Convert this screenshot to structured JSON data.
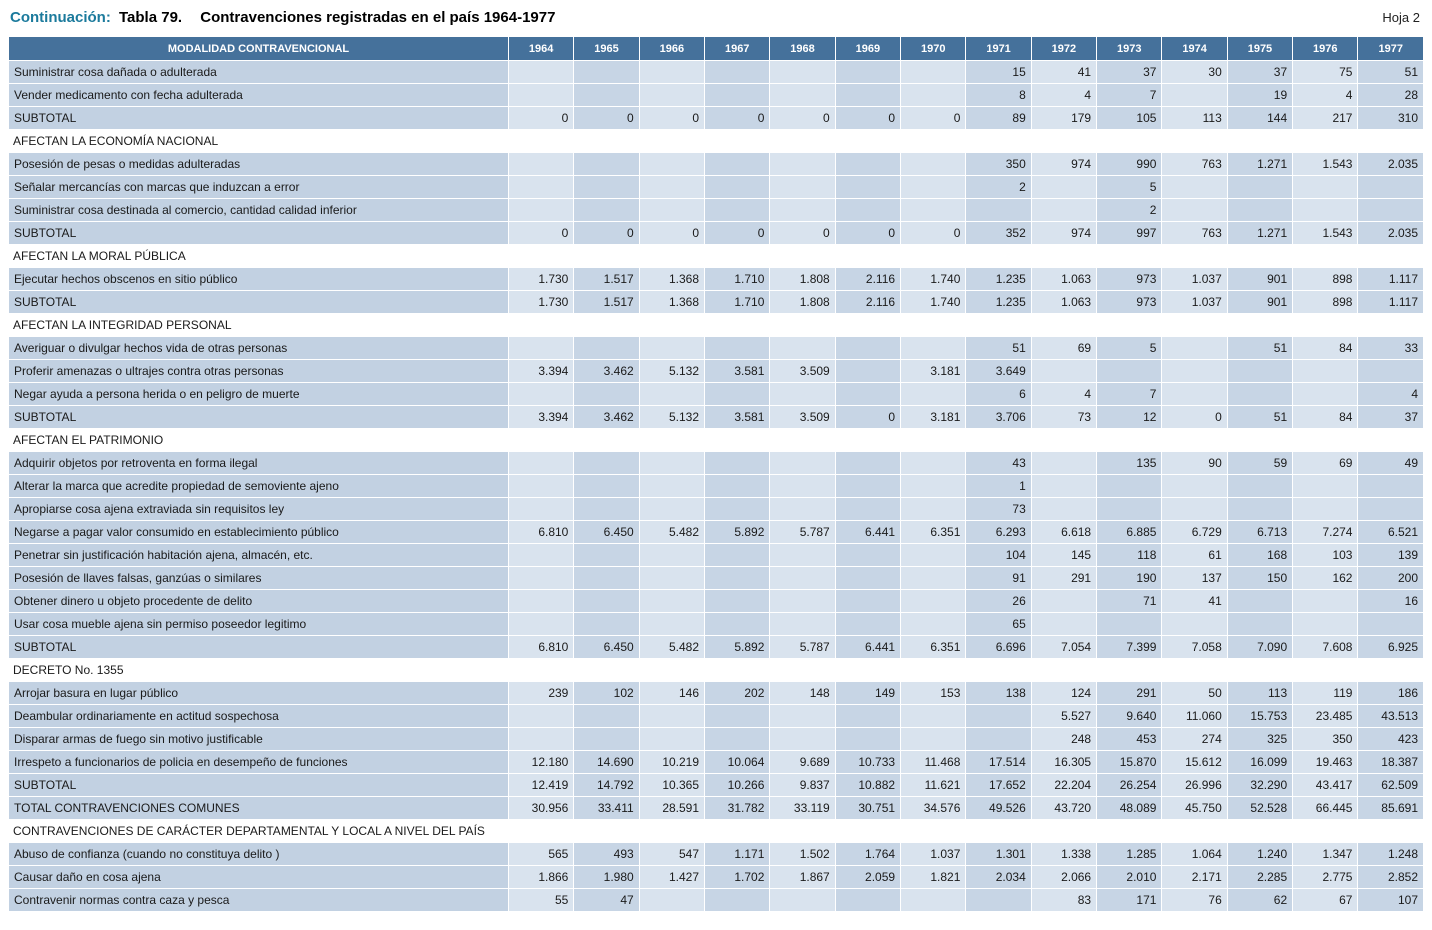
{
  "header": {
    "continuation": "Continuación:",
    "table_label": "Tabla 79.",
    "title": "Contravenciones registradas en el país 1964-1977",
    "page": "Hoja 2"
  },
  "table": {
    "label_header": "MODALIDAD CONTRAVENCIONAL",
    "years": [
      "1964",
      "1965",
      "1966",
      "1967",
      "1968",
      "1969",
      "1970",
      "1971",
      "1972",
      "1973",
      "1974",
      "1975",
      "1976",
      "1977"
    ],
    "rows": [
      {
        "type": "data",
        "label": "Suministrar cosa dañada o adulterada",
        "values": [
          "",
          "",
          "",
          "",
          "",
          "",
          "",
          "15",
          "41",
          "37",
          "30",
          "37",
          "75",
          "51"
        ]
      },
      {
        "type": "data",
        "label": "Vender medicamento con fecha adulterada",
        "values": [
          "",
          "",
          "",
          "",
          "",
          "",
          "",
          "8",
          "4",
          "7",
          "",
          "19",
          "4",
          "28"
        ]
      },
      {
        "type": "subtotal",
        "label": "SUBTOTAL",
        "values": [
          "0",
          "0",
          "0",
          "0",
          "0",
          "0",
          "0",
          "89",
          "179",
          "105",
          "113",
          "144",
          "217",
          "310"
        ]
      },
      {
        "type": "section",
        "label": "AFECTAN LA  ECONOMÍA NACIONAL"
      },
      {
        "type": "data",
        "label": "Posesión de pesas o medidas adulteradas",
        "values": [
          "",
          "",
          "",
          "",
          "",
          "",
          "",
          "350",
          "974",
          "990",
          "763",
          "1.271",
          "1.543",
          "2.035"
        ]
      },
      {
        "type": "data",
        "label": "Señalar mercancías con marcas que induzcan a error",
        "values": [
          "",
          "",
          "",
          "",
          "",
          "",
          "",
          "2",
          "",
          "5",
          "",
          "",
          "",
          ""
        ]
      },
      {
        "type": "data",
        "label": "Suministrar cosa destinada al comercio, cantidad calidad inferior",
        "values": [
          "",
          "",
          "",
          "",
          "",
          "",
          "",
          "",
          "",
          "2",
          "",
          "",
          "",
          ""
        ]
      },
      {
        "type": "subtotal",
        "label": "SUBTOTAL",
        "values": [
          "0",
          "0",
          "0",
          "0",
          "0",
          "0",
          "0",
          "352",
          "974",
          "997",
          "763",
          "1.271",
          "1.543",
          "2.035"
        ]
      },
      {
        "type": "section",
        "label": "AFECTAN LA MORAL PÚBLICA"
      },
      {
        "type": "data",
        "label": "Ejecutar hechos obscenos en sitio público",
        "values": [
          "1.730",
          "1.517",
          "1.368",
          "1.710",
          "1.808",
          "2.116",
          "1.740",
          "1.235",
          "1.063",
          "973",
          "1.037",
          "901",
          "898",
          "1.117"
        ]
      },
      {
        "type": "subtotal",
        "label": "SUBTOTAL",
        "values": [
          "1.730",
          "1.517",
          "1.368",
          "1.710",
          "1.808",
          "2.116",
          "1.740",
          "1.235",
          "1.063",
          "973",
          "1.037",
          "901",
          "898",
          "1.117"
        ]
      },
      {
        "type": "section",
        "label": "AFECTAN LA INTEGRIDAD PERSONAL"
      },
      {
        "type": "data",
        "label": "Averiguar o divulgar hechos vida de otras personas",
        "values": [
          "",
          "",
          "",
          "",
          "",
          "",
          "",
          "51",
          "69",
          "5",
          "",
          "51",
          "84",
          "33"
        ]
      },
      {
        "type": "data",
        "label": "Proferir amenazas o ultrajes contra otras personas",
        "values": [
          "3.394",
          "3.462",
          "5.132",
          "3.581",
          "3.509",
          "",
          "3.181",
          "3.649",
          "",
          "",
          "",
          "",
          "",
          ""
        ]
      },
      {
        "type": "data",
        "label": "Negar ayuda a persona herida o en peligro de muerte",
        "values": [
          "",
          "",
          "",
          "",
          "",
          "",
          "",
          "6",
          "4",
          "7",
          "",
          "",
          "",
          "4"
        ]
      },
      {
        "type": "subtotal",
        "label": "SUBTOTAL",
        "values": [
          "3.394",
          "3.462",
          "5.132",
          "3.581",
          "3.509",
          "0",
          "3.181",
          "3.706",
          "73",
          "12",
          "0",
          "51",
          "84",
          "37"
        ]
      },
      {
        "type": "section",
        "label": "AFECTAN  EL PATRIMONIO"
      },
      {
        "type": "data",
        "label": "Adquirir objetos por retroventa en forma ilegal",
        "values": [
          "",
          "",
          "",
          "",
          "",
          "",
          "",
          "43",
          "",
          "135",
          "90",
          "59",
          "69",
          "49"
        ]
      },
      {
        "type": "data",
        "label": "Alterar la marca que acredite propiedad de semoviente ajeno",
        "values": [
          "",
          "",
          "",
          "",
          "",
          "",
          "",
          "1",
          "",
          "",
          "",
          "",
          "",
          ""
        ]
      },
      {
        "type": "data",
        "label": "Apropiarse cosa ajena extraviada sin requisitos ley",
        "values": [
          "",
          "",
          "",
          "",
          "",
          "",
          "",
          "73",
          "",
          "",
          "",
          "",
          "",
          ""
        ]
      },
      {
        "type": "data",
        "label": "Negarse a pagar valor consumido en establecimiento público",
        "values": [
          "6.810",
          "6.450",
          "5.482",
          "5.892",
          "5.787",
          "6.441",
          "6.351",
          "6.293",
          "6.618",
          "6.885",
          "6.729",
          "6.713",
          "7.274",
          "6.521"
        ]
      },
      {
        "type": "data",
        "label": "Penetrar sin justificación habitación ajena, almacén, etc.",
        "values": [
          "",
          "",
          "",
          "",
          "",
          "",
          "",
          "104",
          "145",
          "118",
          "61",
          "168",
          "103",
          "139"
        ]
      },
      {
        "type": "data",
        "label": "Posesión de llaves falsas, ganzúas o similares",
        "values": [
          "",
          "",
          "",
          "",
          "",
          "",
          "",
          "91",
          "291",
          "190",
          "137",
          "150",
          "162",
          "200"
        ]
      },
      {
        "type": "data",
        "label": "Obtener dinero u objeto procedente de delito",
        "values": [
          "",
          "",
          "",
          "",
          "",
          "",
          "",
          "26",
          "",
          "71",
          "41",
          "",
          "",
          "16"
        ]
      },
      {
        "type": "data",
        "label": "Usar cosa mueble ajena sin permiso poseedor legitimo",
        "values": [
          "",
          "",
          "",
          "",
          "",
          "",
          "",
          "65",
          "",
          "",
          "",
          "",
          "",
          ""
        ]
      },
      {
        "type": "subtotal",
        "label": "SUBTOTAL",
        "values": [
          "6.810",
          "6.450",
          "5.482",
          "5.892",
          "5.787",
          "6.441",
          "6.351",
          "6.696",
          "7.054",
          "7.399",
          "7.058",
          "7.090",
          "7.608",
          "6.925"
        ]
      },
      {
        "type": "section",
        "label": "DECRETO No. 1355"
      },
      {
        "type": "data",
        "label": "Arrojar basura en lugar público",
        "values": [
          "239",
          "102",
          "146",
          "202",
          "148",
          "149",
          "153",
          "138",
          "124",
          "291",
          "50",
          "113",
          "119",
          "186"
        ]
      },
      {
        "type": "data",
        "label": "Deambular ordinariamente en actitud sospechosa",
        "values": [
          "",
          "",
          "",
          "",
          "",
          "",
          "",
          "",
          "5.527",
          "9.640",
          "11.060",
          "15.753",
          "23.485",
          "43.513"
        ]
      },
      {
        "type": "data",
        "label": "Disparar armas de fuego sin motivo justificable",
        "values": [
          "",
          "",
          "",
          "",
          "",
          "",
          "",
          "",
          "248",
          "453",
          "274",
          "325",
          "350",
          "423"
        ]
      },
      {
        "type": "data",
        "label": "Irrespeto a funcionarios de policia en desempeño de funciones",
        "values": [
          "12.180",
          "14.690",
          "10.219",
          "10.064",
          "9.689",
          "10.733",
          "11.468",
          "17.514",
          "16.305",
          "15.870",
          "15.612",
          "16.099",
          "19.463",
          "18.387"
        ]
      },
      {
        "type": "subtotal",
        "label": "SUBTOTAL",
        "values": [
          "12.419",
          "14.792",
          "10.365",
          "10.266",
          "9.837",
          "10.882",
          "11.621",
          "17.652",
          "22.204",
          "26.254",
          "26.996",
          "32.290",
          "43.417",
          "62.509"
        ]
      },
      {
        "type": "total",
        "label": "TOTAL CONTRAVENCIONES COMUNES",
        "values": [
          "30.956",
          "33.411",
          "28.591",
          "31.782",
          "33.119",
          "30.751",
          "34.576",
          "49.526",
          "43.720",
          "48.089",
          "45.750",
          "52.528",
          "66.445",
          "85.691"
        ]
      },
      {
        "type": "section",
        "label": "CONTRAVENCIONES DE CARÁCTER DEPARTAMENTAL Y LOCAL A NIVEL DEL PAÍS"
      },
      {
        "type": "data",
        "label": "Abuso de confianza (cuando no constituya delito )",
        "values": [
          "565",
          "493",
          "547",
          "1.171",
          "1.502",
          "1.764",
          "1.037",
          "1.301",
          "1.338",
          "1.285",
          "1.064",
          "1.240",
          "1.347",
          "1.248"
        ]
      },
      {
        "type": "data",
        "label": "Causar daño en cosa ajena",
        "values": [
          "1.866",
          "1.980",
          "1.427",
          "1.702",
          "1.867",
          "2.059",
          "1.821",
          "2.034",
          "2.066",
          "2.010",
          "2.171",
          "2.285",
          "2.775",
          "2.852"
        ]
      },
      {
        "type": "data",
        "label": "Contravenir normas contra caza y pesca",
        "values": [
          "55",
          "47",
          "",
          "",
          "",
          "",
          "",
          "",
          "83",
          "171",
          "76",
          "62",
          "67",
          "107"
        ]
      }
    ]
  }
}
